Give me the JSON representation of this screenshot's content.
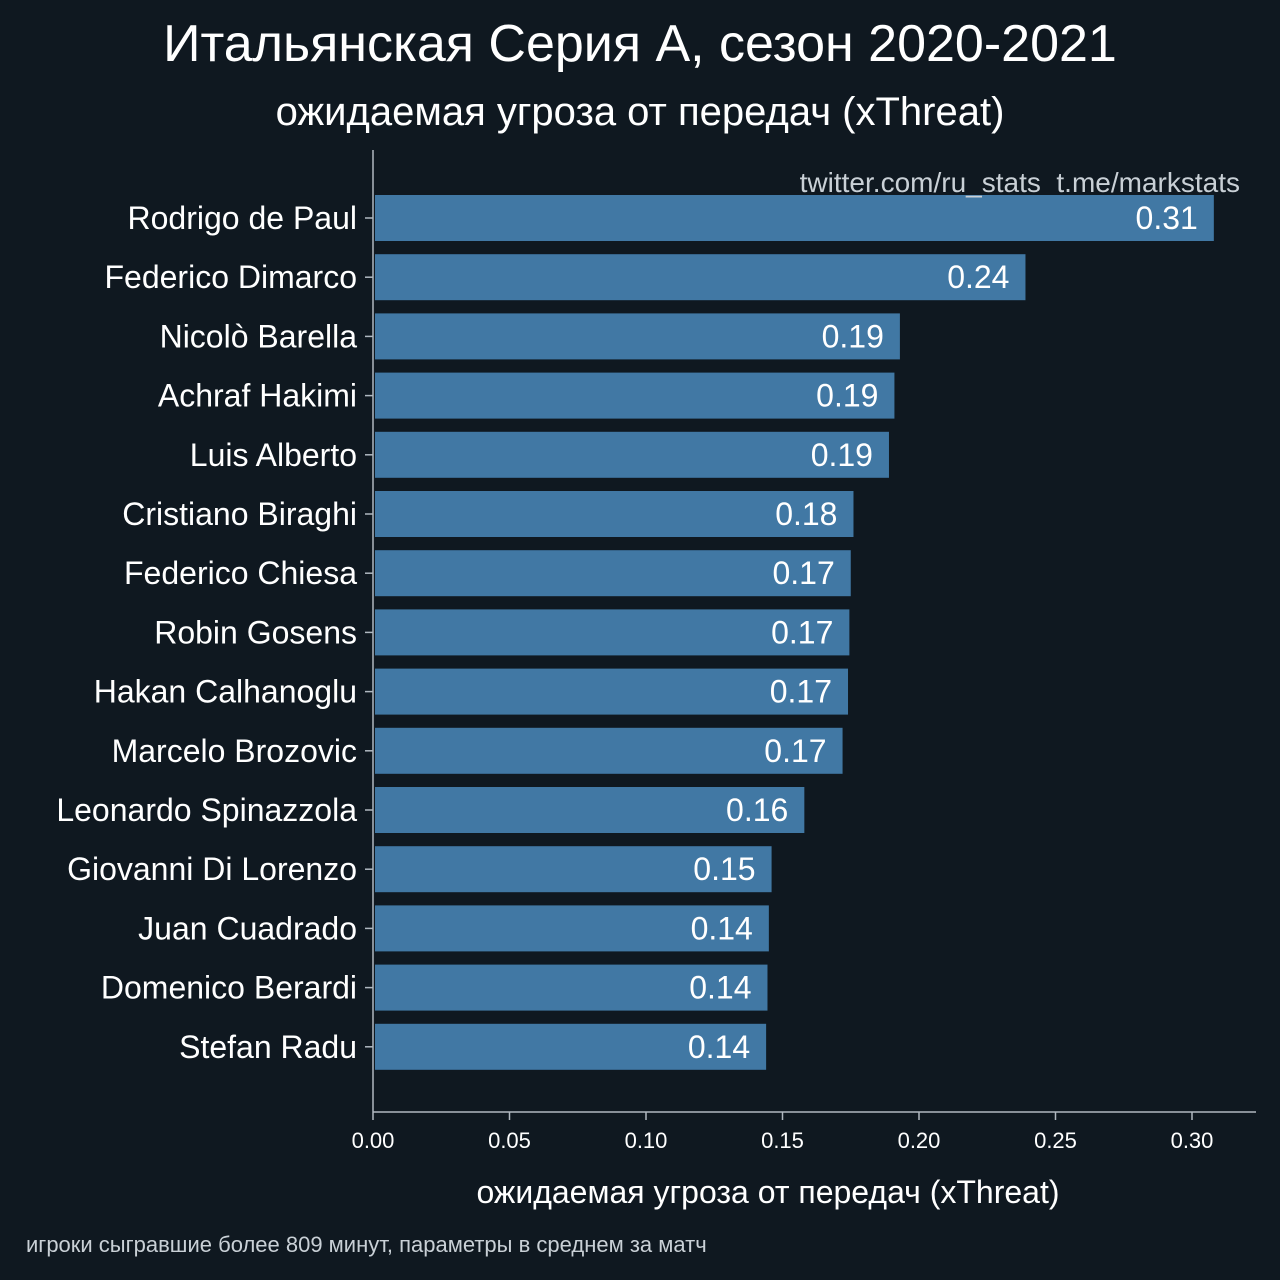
{
  "title": "Итальянская Серия А, сезон 2020-2021",
  "subtitle": "ожидаемая угроза от передач (xThreat)",
  "watermark": "twitter.com/ru_stats  t.me/markstats",
  "footnote": "игроки сыгравшие более 809 минут, параметры в среднем за матч",
  "colors": {
    "background": "#0f1820",
    "bar": "#4178a4",
    "axis": "#b0b8c0"
  },
  "chart_data": {
    "type": "bar",
    "orientation": "horizontal",
    "xlabel": "ожидаемая угроза от передач (xThreat)",
    "ylabel": "",
    "xlim": [
      0,
      0.3225
    ],
    "xticks": [
      0.0,
      0.05,
      0.1,
      0.15,
      0.2,
      0.25,
      0.3
    ],
    "xtick_labels": [
      "0.00",
      "0.05",
      "0.10",
      "0.15",
      "0.20",
      "0.25",
      "0.30"
    ],
    "grid": false,
    "categories": [
      "Rodrigo de Paul",
      "Federico Dimarco",
      "Nicolò Barella",
      "Achraf Hakimi",
      "Luis Alberto",
      "Cristiano Biraghi",
      "Federico Chiesa",
      "Robin Gosens",
      "Hakan Calhanoglu",
      "Marcelo Brozovic",
      "Leonardo Spinazzola",
      "Giovanni Di Lorenzo",
      "Juan Cuadrado",
      "Domenico Berardi",
      "Stefan Radu"
    ],
    "values": [
      0.308,
      0.239,
      0.193,
      0.191,
      0.189,
      0.176,
      0.175,
      0.1745,
      0.174,
      0.172,
      0.158,
      0.146,
      0.145,
      0.1445,
      0.144
    ],
    "value_labels": [
      "0.31",
      "0.24",
      "0.19",
      "0.19",
      "0.19",
      "0.18",
      "0.17",
      "0.17",
      "0.17",
      "0.17",
      "0.16",
      "0.15",
      "0.14",
      "0.14",
      "0.14"
    ]
  }
}
